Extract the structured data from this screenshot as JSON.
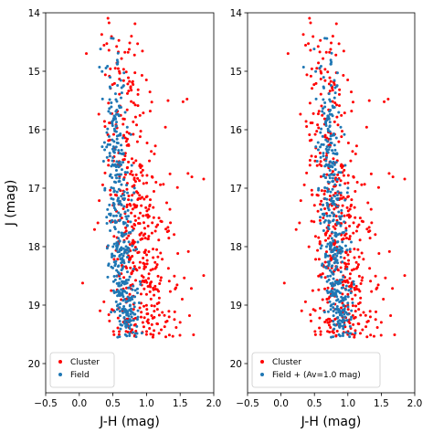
{
  "chart_data": [
    {
      "type": "scatter",
      "xlabel": "J-H (mag)",
      "ylabel": "J (mag)",
      "xlim": [
        -0.5,
        2.0
      ],
      "ylim": [
        20.5,
        14.0
      ],
      "y_inverted": true,
      "xticks": [
        "−0.5",
        "0.0",
        "0.5",
        "1.0",
        "1.5",
        "2.0"
      ],
      "yticks": [
        "14",
        "15",
        "16",
        "17",
        "18",
        "19",
        "20"
      ],
      "legend_position": "lower-left",
      "series": [
        {
          "name": "Cluster",
          "color": "#ff0000"
        },
        {
          "name": "Field",
          "color": "#1f77b4"
        }
      ]
    },
    {
      "type": "scatter",
      "xlabel": "J-H (mag)",
      "ylabel": "",
      "xlim": [
        -0.5,
        2.0
      ],
      "ylim": [
        20.5,
        14.0
      ],
      "y_inverted": true,
      "xticks": [
        "−0.5",
        "0.0",
        "0.5",
        "1.0",
        "1.5",
        "2.0"
      ],
      "yticks": [
        "14",
        "15",
        "16",
        "17",
        "18",
        "19",
        "20"
      ],
      "legend_position": "lower-left",
      "series": [
        {
          "name": "Cluster",
          "color": "#ff0000"
        },
        {
          "name": "Field + (Av=1.0 mag)",
          "color": "#1f77b4"
        }
      ]
    }
  ]
}
